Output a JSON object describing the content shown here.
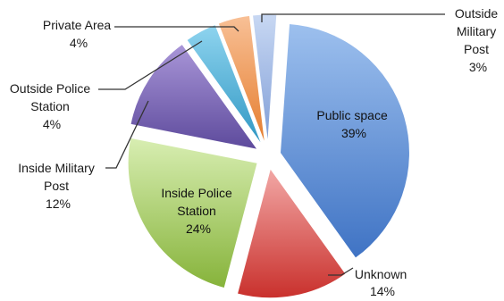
{
  "chart_data": {
    "type": "pie",
    "exploded": true,
    "slices": [
      {
        "label": "Public space",
        "value": 39,
        "pct": "39%",
        "color": "#5b8fd6"
      },
      {
        "label": "Unknown",
        "value": 14,
        "pct": "14%",
        "color": "#d9534f"
      },
      {
        "label": "Inside Police Station",
        "value": 24,
        "pct": "24%",
        "color": "#a3cc5c"
      },
      {
        "label": "Inside Military Post",
        "value": 12,
        "pct": "12%",
        "color": "#7c67b8"
      },
      {
        "label": "Outside Police Station",
        "value": 4,
        "pct": "4%",
        "color": "#4fb3d9"
      },
      {
        "label": "Private Area",
        "value": 4,
        "pct": "4%",
        "color": "#f39a55"
      },
      {
        "label": "Outside Military Post",
        "value": 3,
        "pct": "3%",
        "color": "#9fb7e3"
      }
    ]
  },
  "labels": {
    "public_space": [
      "Public space",
      "39%"
    ],
    "unknown": [
      "Unknown",
      "14%"
    ],
    "inside_police": [
      "Inside Police",
      "Station",
      "24%"
    ],
    "inside_military": [
      "Inside Military",
      "Post",
      "12%"
    ],
    "outside_police": [
      "Outside Police",
      "Station",
      "4%"
    ],
    "private_area": [
      "Private Area",
      "4%"
    ],
    "outside_military": [
      "Outside",
      "Military",
      "Post",
      "3%"
    ]
  }
}
